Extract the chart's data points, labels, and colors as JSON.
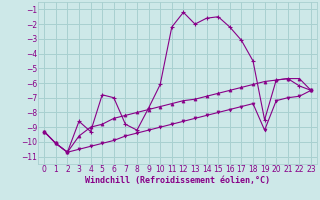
{
  "title": "",
  "xlabel": "Windchill (Refroidissement éolien,°C)",
  "bg_color": "#cde8e8",
  "grid_color": "#a8d0d0",
  "line_color": "#880088",
  "xlim": [
    -0.5,
    23.5
  ],
  "ylim": [
    -11.5,
    -0.5
  ],
  "xticks": [
    0,
    1,
    2,
    3,
    4,
    5,
    6,
    7,
    8,
    9,
    10,
    11,
    12,
    13,
    14,
    15,
    16,
    17,
    18,
    19,
    20,
    21,
    22,
    23
  ],
  "yticks": [
    -11,
    -10,
    -9,
    -8,
    -7,
    -6,
    -5,
    -4,
    -3,
    -2,
    -1
  ],
  "series1_x": [
    0,
    1,
    2,
    3,
    4,
    5,
    6,
    7,
    8,
    9,
    10,
    11,
    12,
    13,
    14,
    15,
    16,
    17,
    18,
    19,
    20,
    21,
    22,
    23
  ],
  "series1_y": [
    -9.3,
    -10.1,
    -10.7,
    -8.6,
    -9.3,
    -6.8,
    -7.0,
    -8.8,
    -9.2,
    -7.7,
    -6.1,
    -2.2,
    -1.2,
    -2.0,
    -1.6,
    -1.5,
    -2.2,
    -3.1,
    -4.5,
    -8.5,
    -5.8,
    -5.7,
    -6.2,
    -6.5
  ],
  "series2_x": [
    0,
    1,
    2,
    3,
    4,
    5,
    6,
    7,
    8,
    9,
    10,
    11,
    12,
    13,
    14,
    15,
    16,
    17,
    18,
    19,
    20,
    21,
    22,
    23
  ],
  "series2_y": [
    -9.3,
    -10.1,
    -10.7,
    -9.6,
    -9.0,
    -8.8,
    -8.4,
    -8.2,
    -8.0,
    -7.8,
    -7.6,
    -7.4,
    -7.2,
    -7.1,
    -6.9,
    -6.7,
    -6.5,
    -6.3,
    -6.1,
    -5.9,
    -5.8,
    -5.7,
    -5.7,
    -6.5
  ],
  "series3_x": [
    0,
    1,
    2,
    3,
    4,
    5,
    6,
    7,
    8,
    9,
    10,
    11,
    12,
    13,
    14,
    15,
    16,
    17,
    18,
    19,
    20,
    21,
    22,
    23
  ],
  "series3_y": [
    -9.3,
    -10.1,
    -10.7,
    -10.5,
    -10.3,
    -10.1,
    -9.9,
    -9.6,
    -9.4,
    -9.2,
    -9.0,
    -8.8,
    -8.6,
    -8.4,
    -8.2,
    -8.0,
    -7.8,
    -7.6,
    -7.4,
    -9.2,
    -7.2,
    -7.0,
    -6.9,
    -6.5
  ],
  "tick_fontsize": 5.5,
  "label_fontsize": 6.0
}
